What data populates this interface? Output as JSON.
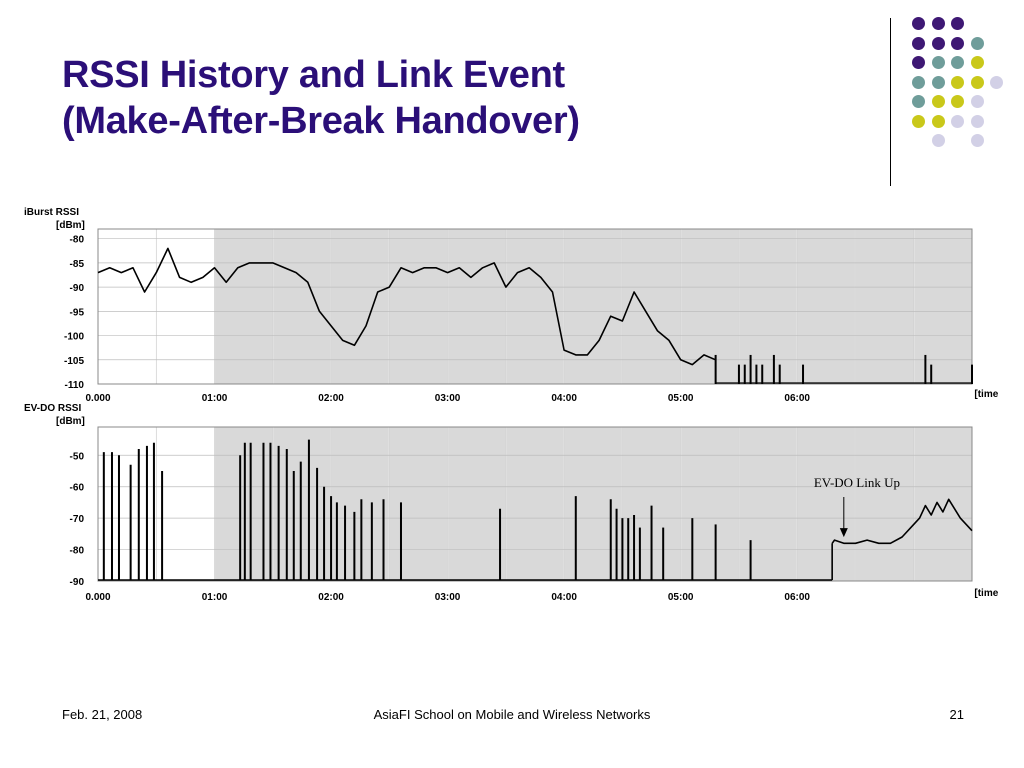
{
  "slide": {
    "title_line1": "RSSI History and Link Event",
    "title_line2": "(Make-After-Break Handover)",
    "footer_left": "Feb. 21, 2008",
    "footer_center": "AsiaFI School on Mobile and Wireless Networks",
    "footer_right": "21"
  },
  "colors": {
    "title": "#2b0f78",
    "dot_purple": "#3e1874",
    "dot_teal": "#6f9d9a",
    "dot_yellow": "#c9c81a",
    "dot_lavender": "#d2d0e6",
    "plot_gray": "#d9d9d9",
    "line": "#000000"
  },
  "decor_dots": [
    [
      "purple",
      "purple",
      "purple",
      ""
    ],
    [
      "purple",
      "purple",
      "purple",
      "teal"
    ],
    [
      "purple",
      "teal",
      "teal",
      "yellow"
    ],
    [
      "teal",
      "teal",
      "yellow",
      "yellow",
      "lavender"
    ],
    [
      "teal",
      "yellow",
      "yellow",
      "lavender"
    ],
    [
      "yellow",
      "yellow",
      "lavender",
      "lavender"
    ],
    [
      "",
      "lavender",
      "",
      "lavender"
    ]
  ],
  "chart_data": [
    {
      "type": "line",
      "ylabel_line1": "iBurst RSSI",
      "ylabel_line2": "[dBm]",
      "xlabel": "[time]",
      "yticks": [
        "-80",
        "-85",
        "-90",
        "-95",
        "-100",
        "-105",
        "-110"
      ],
      "ylim": [
        -110,
        -78
      ],
      "xticks": [
        "0.000",
        "01:00",
        "02:00",
        "03:00",
        "04:00",
        "05:00",
        "06:00"
      ],
      "xlim_minutes": [
        0,
        7.5
      ],
      "gray_from_minutes": 1.0,
      "grid": true,
      "x_minutes": [
        0,
        0.1,
        0.2,
        0.3,
        0.4,
        0.5,
        0.6,
        0.7,
        0.8,
        0.9,
        1.0,
        1.1,
        1.2,
        1.3,
        1.4,
        1.5,
        1.6,
        1.7,
        1.8,
        1.9,
        2.0,
        2.1,
        2.2,
        2.3,
        2.4,
        2.5,
        2.6,
        2.7,
        2.8,
        2.9,
        3.0,
        3.1,
        3.2,
        3.3,
        3.4,
        3.5,
        3.6,
        3.7,
        3.8,
        3.9,
        4.0,
        4.1,
        4.2,
        4.3,
        4.4,
        4.5,
        4.6,
        4.7,
        4.8,
        4.9,
        5.0,
        5.1,
        5.2,
        5.3
      ],
      "values_dbm": [
        -87,
        -86,
        -87,
        -86,
        -91,
        -87,
        -82,
        -88,
        -89,
        -88,
        -86,
        -89,
        -86,
        -85,
        -85,
        -85,
        -86,
        -87,
        -89,
        -95,
        -98,
        -101,
        -102,
        -98,
        -91,
        -90,
        -86,
        -87,
        -86,
        -86,
        -87,
        -86,
        -88,
        -86,
        -85,
        -90,
        -87,
        -86,
        -88,
        -91,
        -103,
        -104,
        -104,
        -101,
        -96,
        -97,
        -91,
        -95,
        -99,
        -101,
        -105,
        -106,
        -104,
        -105
      ],
      "dropouts_minutes": [
        5.3,
        5.5,
        5.55,
        5.6,
        5.65,
        5.7,
        5.8,
        5.85,
        6.05,
        7.1,
        7.15,
        7.5
      ]
    },
    {
      "type": "line",
      "ylabel_line1": "EV-DO RSSI",
      "ylabel_line2": "[dBm]",
      "xlabel": "[time]",
      "yticks": [
        "-50",
        "-60",
        "-70",
        "-80",
        "-90"
      ],
      "ylim": [
        -90,
        -41
      ],
      "xticks": [
        "0.000",
        "01:00",
        "02:00",
        "03:00",
        "04:00",
        "05:00",
        "06:00"
      ],
      "xlim_minutes": [
        0,
        7.5
      ],
      "gray_from_minutes": 1.0,
      "grid": true,
      "annotation": "EV-DO Link Up",
      "spikes_minutes": [
        0.05,
        0.12,
        0.18,
        0.28,
        0.35,
        0.42,
        0.48,
        0.55,
        1.22,
        1.26,
        1.31,
        1.42,
        1.48,
        1.55,
        1.62,
        1.68,
        1.74,
        1.81,
        1.88,
        1.94,
        2.0,
        2.05,
        2.12,
        2.2,
        2.26,
        2.35,
        2.45,
        2.6,
        3.45,
        4.1,
        4.4,
        4.45,
        4.5,
        4.55,
        4.6,
        4.65,
        4.75,
        4.85,
        5.1,
        5.3,
        5.6
      ],
      "spike_values_dbm": [
        -49,
        -49,
        -50,
        -53,
        -48,
        -47,
        -46,
        -55,
        -50,
        -46,
        -46,
        -46,
        -46,
        -47,
        -48,
        -55,
        -52,
        -45,
        -54,
        -60,
        -63,
        -65,
        -66,
        -68,
        -64,
        -65,
        -64,
        -65,
        -67,
        -63,
        -64,
        -67,
        -70,
        -70,
        -69,
        -73,
        -66,
        -73,
        -70,
        -72,
        -77
      ],
      "link_up_x_minutes": [
        6.3,
        6.32,
        6.4,
        6.5,
        6.6,
        6.7,
        6.8,
        6.9,
        7.0,
        7.05,
        7.1,
        7.15,
        7.2,
        7.25,
        7.3,
        7.35,
        7.4,
        7.45,
        7.5
      ],
      "link_up_values_dbm": [
        -78,
        -77,
        -78,
        -78,
        -77,
        -78,
        -78,
        -76,
        -72,
        -70,
        -66,
        -69,
        -65,
        -68,
        -64,
        -67,
        -70,
        -72,
        -74
      ]
    }
  ]
}
